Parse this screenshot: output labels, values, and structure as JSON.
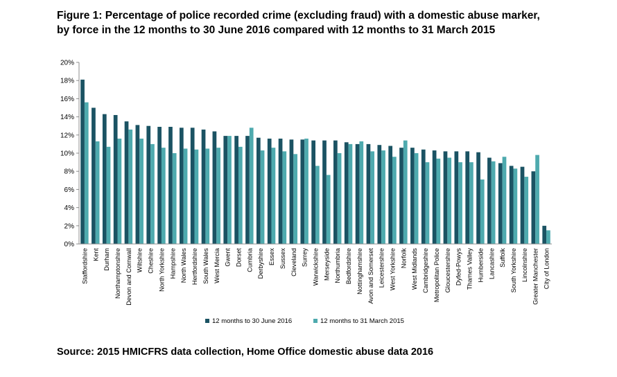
{
  "title_line1": "Figure 1: Percentage of police recorded crime (excluding fraud) with a domestic abuse marker,",
  "title_line2": "by force in the 12 months to 30 June 2016 compared with 12 months to 31 March 2015",
  "source": "Source: 2015 HMICFRS data collection, Home Office domestic abuse data 2016",
  "colors": {
    "series1": "#1b5363",
    "series2": "#4eaaae",
    "axis": "#8c8c8c",
    "grid": "#d9d9d9"
  },
  "chart_data": {
    "type": "bar",
    "title": "",
    "xlabel": "",
    "ylabel": "",
    "ylim": [
      0,
      20
    ],
    "yticks": [
      "0%",
      "2%",
      "4%",
      "6%",
      "8%",
      "10%",
      "12%",
      "14%",
      "16%",
      "18%",
      "20%"
    ],
    "grid": false,
    "legend_position": "bottom",
    "categories": [
      "Staffordshire",
      "Kent",
      "Durham",
      "Northamptonshire",
      "Devon and Cornwall",
      "Wiltshire",
      "Cheshire",
      "North Yorkshire",
      "Hampshire",
      "North Wales",
      "Hertfordshire",
      "South Wales",
      "West Mercia",
      "Gwent",
      "Dorset",
      "Cumbria",
      "Derbyshire",
      "Essex",
      "Sussex",
      "Cleveland",
      "Surrey",
      "Warwickshire",
      "Merseyside",
      "Northumbria",
      "Bedfordshire",
      "Nottinghamshire",
      "Avon and Somerset",
      "Leicestershire",
      "West Yorkshire",
      "Norfolk",
      "West Midlands",
      "Cambridgeshire",
      "Metropolitan Police",
      "Gloucestershire",
      "Dyfed-Powys",
      "Thames Valley",
      "Humberside",
      "Lancashire",
      "Suffolk",
      "South Yorkshire",
      "Lincolnshire",
      "Greater Manchester",
      "City of London"
    ],
    "series": [
      {
        "name": "12 months to 30 June 2016",
        "values": [
          18.1,
          15.0,
          14.3,
          14.2,
          13.5,
          13.1,
          13.0,
          12.9,
          12.9,
          12.8,
          12.8,
          12.6,
          12.4,
          11.9,
          11.9,
          11.9,
          11.7,
          11.6,
          11.6,
          11.5,
          11.5,
          11.4,
          11.4,
          11.4,
          11.2,
          11.0,
          11.0,
          10.9,
          10.8,
          10.6,
          10.6,
          10.4,
          10.3,
          10.2,
          10.2,
          10.2,
          10.1,
          9.5,
          8.9,
          8.6,
          8.5,
          8.0,
          2.0
        ]
      },
      {
        "name": "12 months to 31 March 2015",
        "values": [
          15.6,
          11.3,
          10.7,
          11.6,
          12.6,
          11.6,
          11.0,
          10.6,
          10.0,
          10.5,
          10.4,
          10.5,
          10.6,
          11.9,
          10.7,
          12.8,
          10.3,
          10.6,
          10.2,
          9.9,
          11.6,
          8.6,
          7.6,
          10.0,
          11.0,
          11.3,
          10.2,
          10.3,
          9.6,
          11.4,
          10.0,
          9.0,
          9.4,
          9.5,
          9.0,
          9.0,
          7.1,
          9.1,
          9.6,
          8.3,
          7.4,
          9.8,
          1.5
        ]
      }
    ]
  }
}
